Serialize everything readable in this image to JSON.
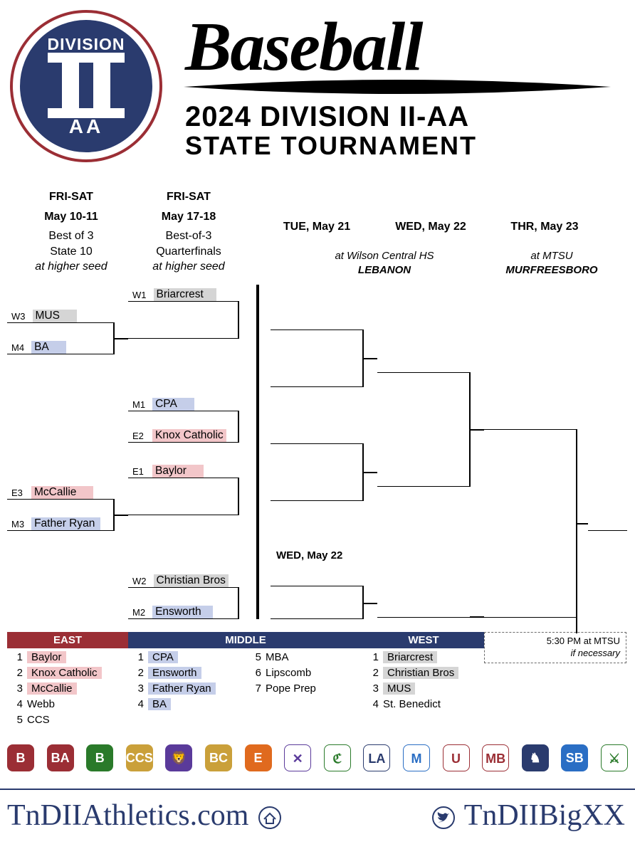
{
  "header": {
    "logo_division": "DIVISION",
    "logo_aa": "AA",
    "title_baseball": "Baseball",
    "title_line1": "2024  DIVISION II-AA",
    "title_line2": "STATE TOURNAMENT"
  },
  "columns": {
    "c1": {
      "days": "FRI-SAT",
      "date": "May 10-11",
      "note1": "Best of 3",
      "note2": "State 10",
      "note3": "at higher seed"
    },
    "c2": {
      "days": "FRI-SAT",
      "date": "May 17-18",
      "note1": "Best-of-3",
      "note2": "Quarterfinals",
      "note3": "at higher seed"
    },
    "c3": {
      "label": "TUE, May 21"
    },
    "c4": {
      "label": "WED, May 22"
    },
    "c5": {
      "label": "THR, May 23"
    }
  },
  "venues": {
    "v1": {
      "pre": "at Wilson Central HS",
      "city": "LEBANON"
    },
    "v2": {
      "pre": "at MTSU",
      "city": "MURFREESBORO"
    }
  },
  "bracket": {
    "r1": [
      {
        "seed": "W3",
        "team": "MUS",
        "fill": "west"
      },
      {
        "seed": "M4",
        "team": "BA",
        "fill": "mid"
      },
      {
        "seed": "E3",
        "team": "McCallie",
        "fill": "east"
      },
      {
        "seed": "M3",
        "team": "Father Ryan",
        "fill": "mid"
      }
    ],
    "r2": [
      {
        "seed": "W1",
        "team": "Briarcrest",
        "fill": "west"
      },
      {
        "seed": "M1",
        "team": "CPA",
        "fill": "mid"
      },
      {
        "seed": "E2",
        "team": "Knox Catholic",
        "fill": "east"
      },
      {
        "seed": "E1",
        "team": "Baylor",
        "fill": "east"
      },
      {
        "seed": "W2",
        "team": "Christian Bros",
        "fill": "west"
      },
      {
        "seed": "M2",
        "team": "Ensworth",
        "fill": "mid"
      }
    ],
    "loser_label": "WED, May 22",
    "ifnec": {
      "time": "5:30 PM at MTSU",
      "note": "if necessary"
    }
  },
  "standings": {
    "east": {
      "hdr": "EAST",
      "rows": [
        {
          "n": "1",
          "t": "Baylor",
          "hl": true
        },
        {
          "n": "2",
          "t": "Knox Catholic",
          "hl": true
        },
        {
          "n": "3",
          "t": "McCallie",
          "hl": true
        },
        {
          "n": "4",
          "t": "Webb"
        },
        {
          "n": "5",
          "t": "CCS"
        }
      ]
    },
    "middle": {
      "hdr": "MIDDLE",
      "rowsA": [
        {
          "n": "1",
          "t": "CPA",
          "hl": true
        },
        {
          "n": "2",
          "t": "Ensworth",
          "hl": true
        },
        {
          "n": "3",
          "t": "Father Ryan",
          "hl": true
        },
        {
          "n": "4",
          "t": "BA",
          "hl": true
        }
      ],
      "rowsB": [
        {
          "n": "5",
          "t": "MBA"
        },
        {
          "n": "6",
          "t": "Lipscomb"
        },
        {
          "n": "7",
          "t": "Pope Prep"
        }
      ]
    },
    "west": {
      "hdr": "WEST",
      "rows": [
        {
          "n": "1",
          "t": "Briarcrest",
          "hl": true
        },
        {
          "n": "2",
          "t": "Christian Bros",
          "hl": true
        },
        {
          "n": "3",
          "t": "MUS",
          "hl": true
        },
        {
          "n": "4",
          "t": "St. Benedict"
        }
      ]
    }
  },
  "footer": {
    "left": "TnDIIAthletics.com",
    "right": "TnDIIBigXX"
  },
  "team_logos": [
    {
      "txt": "B",
      "bg": "#9b2e35"
    },
    {
      "txt": "BA",
      "bg": "#9b2e35"
    },
    {
      "txt": "B",
      "bg": "#2a7a2a"
    },
    {
      "txt": "CCS",
      "bg": "#caa03a"
    },
    {
      "txt": "🦁",
      "bg": "#5a3a9a"
    },
    {
      "txt": "BC",
      "bg": "#caa03a"
    },
    {
      "txt": "E",
      "bg": "#e06a1e"
    },
    {
      "txt": "✕",
      "bg": "#fff",
      "fg": "#5a3a9a"
    },
    {
      "txt": "ℭ",
      "bg": "#fff",
      "fg": "#2a7a2a"
    },
    {
      "txt": "LA",
      "bg": "#fff",
      "fg": "#2a3b6e"
    },
    {
      "txt": "M",
      "bg": "#fff",
      "fg": "#2a6ec4"
    },
    {
      "txt": "U",
      "bg": "#fff",
      "fg": "#9b2e35"
    },
    {
      "txt": "MB",
      "bg": "#fff",
      "fg": "#9b2e35"
    },
    {
      "txt": "♞",
      "bg": "#2a3b6e"
    },
    {
      "txt": "SB",
      "bg": "#2a6ec4"
    },
    {
      "txt": "⚔",
      "bg": "#fff",
      "fg": "#2a7a2a"
    }
  ],
  "colors": {
    "navy": "#2a3b6e",
    "maroon": "#9b2e35",
    "east_fill": "#f2c6c9",
    "mid_fill": "#c5cee9",
    "west_fill": "#d5d5d5"
  }
}
